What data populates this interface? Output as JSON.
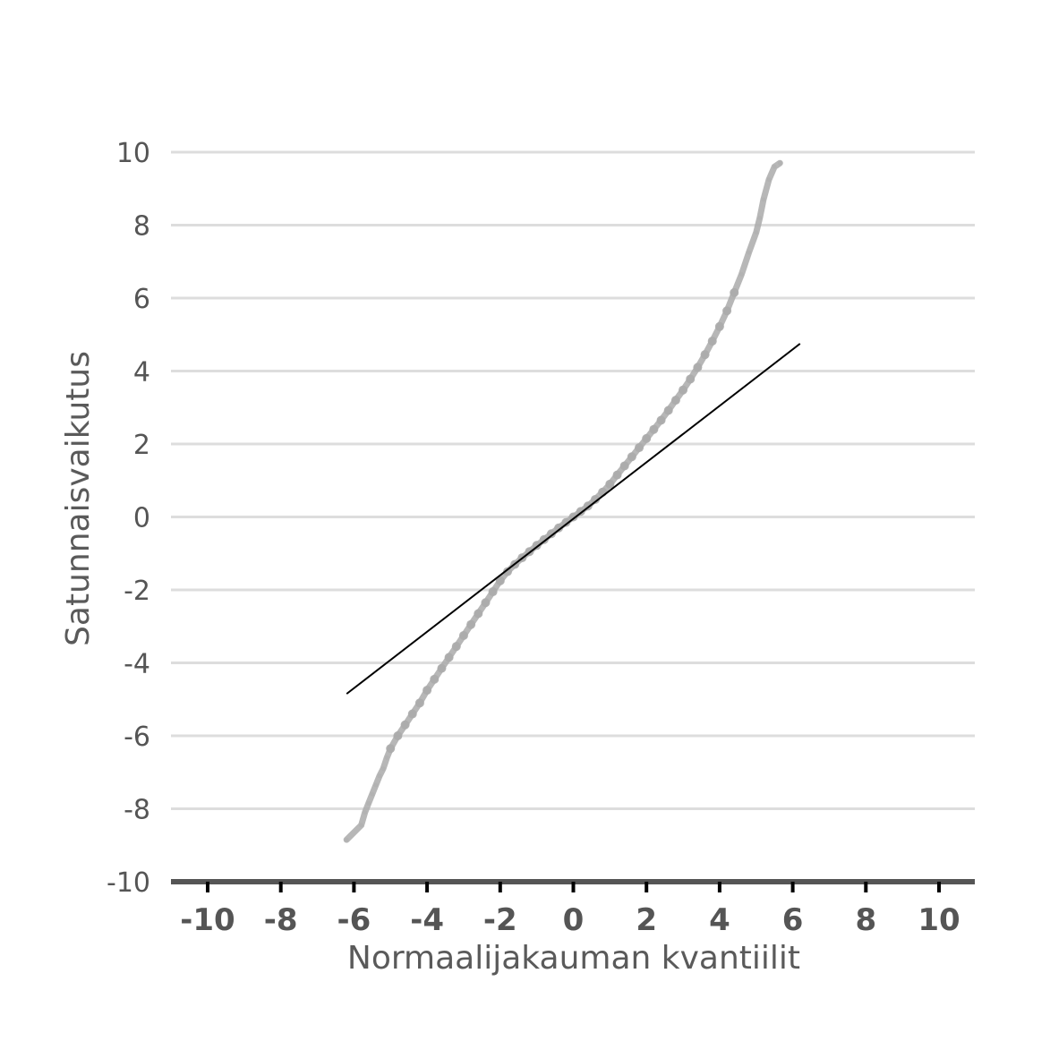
{
  "chart_data": {
    "type": "scatter",
    "title": "",
    "xlabel": "Normaalijakauman kvantiilit",
    "ylabel": "Satunnaisvaikutus",
    "xlim": [
      -10,
      10
    ],
    "ylim": [
      -10,
      10
    ],
    "x_ticks": [
      "-10",
      "-8",
      "-6",
      "-4",
      "-2",
      "0",
      "2",
      "4",
      "6",
      "8",
      "10"
    ],
    "y_ticks": [
      "10",
      "8",
      "6",
      "4",
      "2",
      "0",
      "-2",
      "-4",
      "-6",
      "-8",
      "-10"
    ],
    "grid": "horizontal",
    "series": [
      {
        "kind": "points",
        "color": "#aaaaaa",
        "points": [
          [
            -6.2,
            -8.85
          ],
          [
            -5.8,
            -8.45
          ],
          [
            -5.7,
            -8.1
          ],
          [
            -5.6,
            -7.85
          ],
          [
            -5.5,
            -7.6
          ],
          [
            -5.4,
            -7.35
          ],
          [
            -5.3,
            -7.1
          ],
          [
            -5.2,
            -6.9
          ],
          [
            -5.1,
            -6.6
          ],
          [
            -5.0,
            -6.35
          ],
          [
            -4.8,
            -6.0
          ],
          [
            -4.6,
            -5.7
          ],
          [
            -4.4,
            -5.4
          ],
          [
            -4.2,
            -5.1
          ],
          [
            -4.0,
            -4.75
          ],
          [
            -3.8,
            -4.45
          ],
          [
            -3.6,
            -4.15
          ],
          [
            -3.4,
            -3.85
          ],
          [
            -3.2,
            -3.55
          ],
          [
            -3.0,
            -3.25
          ],
          [
            -2.8,
            -2.95
          ],
          [
            -2.6,
            -2.65
          ],
          [
            -2.4,
            -2.35
          ],
          [
            -2.2,
            -2.05
          ],
          [
            -2.0,
            -1.75
          ],
          [
            -1.8,
            -1.5
          ],
          [
            -1.6,
            -1.3
          ],
          [
            -1.4,
            -1.12
          ],
          [
            -1.2,
            -0.95
          ],
          [
            -1.0,
            -0.78
          ],
          [
            -0.8,
            -0.62
          ],
          [
            -0.6,
            -0.46
          ],
          [
            -0.4,
            -0.3
          ],
          [
            -0.2,
            -0.15
          ],
          [
            0.0,
            0.0
          ],
          [
            0.2,
            0.15
          ],
          [
            0.4,
            0.3
          ],
          [
            0.6,
            0.48
          ],
          [
            0.8,
            0.68
          ],
          [
            1.0,
            0.9
          ],
          [
            1.2,
            1.15
          ],
          [
            1.4,
            1.4
          ],
          [
            1.6,
            1.65
          ],
          [
            1.8,
            1.9
          ],
          [
            2.0,
            2.15
          ],
          [
            2.2,
            2.4
          ],
          [
            2.4,
            2.65
          ],
          [
            2.6,
            2.92
          ],
          [
            2.8,
            3.2
          ],
          [
            3.0,
            3.48
          ],
          [
            3.2,
            3.78
          ],
          [
            3.4,
            4.1
          ],
          [
            3.6,
            4.45
          ],
          [
            3.8,
            4.82
          ],
          [
            4.0,
            5.22
          ],
          [
            4.2,
            5.65
          ],
          [
            4.4,
            6.15
          ],
          [
            4.6,
            6.65
          ],
          [
            4.8,
            7.25
          ],
          [
            5.0,
            7.8
          ],
          [
            5.1,
            8.2
          ],
          [
            5.2,
            8.7
          ],
          [
            5.35,
            9.25
          ],
          [
            5.5,
            9.6
          ],
          [
            5.65,
            9.7
          ]
        ]
      },
      {
        "kind": "line",
        "color": "#000000",
        "points": [
          [
            -6.2,
            -4.85
          ],
          [
            6.2,
            4.75
          ]
        ]
      }
    ]
  }
}
